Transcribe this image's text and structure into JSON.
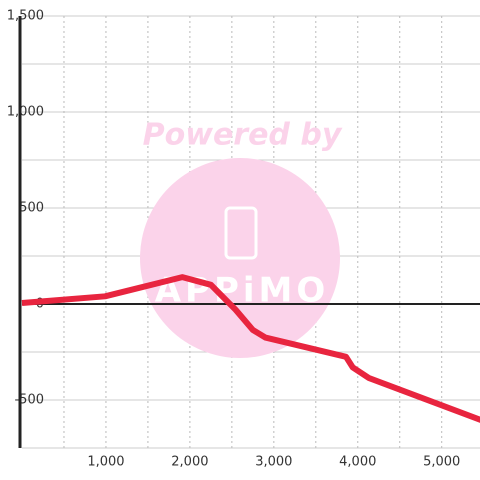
{
  "chart_data": {
    "type": "line",
    "watermark": {
      "text": "Powered by",
      "logo": "APPiMO"
    },
    "x": [
      0,
      990,
      1910,
      2250,
      2545,
      2750,
      2900,
      3860,
      3940,
      4130,
      5470
    ],
    "series": [
      {
        "color": "#e8253f",
        "values": [
          5,
          40,
          140,
          100,
          -30,
          -135,
          -175,
          -275,
          -330,
          -385,
          -605
        ]
      }
    ],
    "xlim": [
      0,
      5480
    ],
    "ylim": [
      -750,
      1500
    ],
    "xticks": [
      {
        "value": 1000,
        "label": "1,000"
      },
      {
        "value": 2000,
        "label": "2,000"
      },
      {
        "value": 3000,
        "label": "3,000"
      },
      {
        "value": 4000,
        "label": "4,000"
      },
      {
        "value": 5000,
        "label": "5,000"
      }
    ],
    "x_minor_ticks": [
      500,
      1500,
      2500,
      3500,
      4500
    ],
    "yticks": [
      -500,
      0,
      500,
      {
        "value": 1000,
        "label": "1,000"
      },
      {
        "value": 1500,
        "label": "1,500"
      }
    ],
    "y_minor_ticks": [
      -750,
      -250,
      250,
      750,
      1250
    ],
    "grid": true
  }
}
